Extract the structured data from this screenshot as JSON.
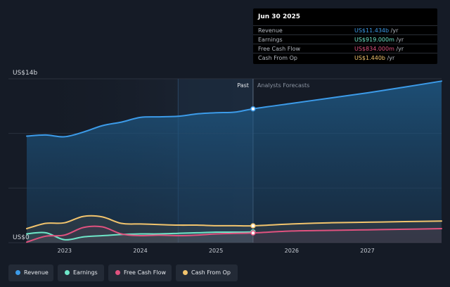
{
  "tooltip": {
    "date": "Jun 30 2025",
    "rows": [
      {
        "label": "Revenue",
        "value": "US$11.434b",
        "unit": "/yr",
        "color": "#3c9be9"
      },
      {
        "label": "Earnings",
        "value": "US$919.000m",
        "unit": "/yr",
        "color": "#6ee6c8"
      },
      {
        "label": "Free Cash Flow",
        "value": "US$834.000m",
        "unit": "/yr",
        "color": "#e0527f"
      },
      {
        "label": "Cash From Op",
        "value": "US$1.440b",
        "unit": "/yr",
        "color": "#f2c46d"
      }
    ]
  },
  "legend": [
    {
      "label": "Revenue",
      "color": "#3c9be9"
    },
    {
      "label": "Earnings",
      "color": "#6ee6c8"
    },
    {
      "label": "Free Cash Flow",
      "color": "#e0527f"
    },
    {
      "label": "Cash From Op",
      "color": "#f2c46d"
    }
  ],
  "chart_data": {
    "type": "area",
    "y_top_label": "US$14b",
    "y_bottom_label": "US$0",
    "ylim": [
      0,
      14
    ],
    "xlim": [
      2022.5,
      2027.98
    ],
    "x_ticks": [
      2023,
      2024,
      2025,
      2026,
      2027
    ],
    "x_tick_labels": [
      "2023",
      "2024",
      "2025",
      "2026",
      "2027"
    ],
    "past_label": "Past",
    "forecast_label": "Analysts Forecasts",
    "divider_x": 2025.49,
    "highlight_start_x": 2024.5,
    "series": [
      {
        "name": "Revenue",
        "color": "#3c9be9",
        "fill": true,
        "x": [
          2022.5,
          2022.75,
          2023.0,
          2023.25,
          2023.5,
          2023.75,
          2024.0,
          2024.25,
          2024.5,
          2024.75,
          2025.0,
          2025.25,
          2025.49,
          2026.0,
          2026.5,
          2027.0,
          2027.5,
          2027.98
        ],
        "y": [
          9.1,
          9.2,
          9.05,
          9.45,
          10.0,
          10.3,
          10.7,
          10.75,
          10.8,
          11.0,
          11.1,
          11.15,
          11.434,
          11.9,
          12.35,
          12.8,
          13.3,
          13.8
        ]
      },
      {
        "name": "Earnings",
        "color": "#6ee6c8",
        "fill": false,
        "x": [
          2022.5,
          2022.75,
          2023.0,
          2023.25,
          2023.5,
          2023.75,
          2024.0,
          2024.25,
          2024.5,
          2024.75,
          2025.0,
          2025.25,
          2025.49
        ],
        "y": [
          0.75,
          0.85,
          0.25,
          0.5,
          0.6,
          0.7,
          0.75,
          0.75,
          0.8,
          0.85,
          0.9,
          0.9,
          0.919
        ]
      },
      {
        "name": "Free Cash Flow",
        "color": "#e0527f",
        "fill": false,
        "x": [
          2022.5,
          2022.75,
          2023.0,
          2023.25,
          2023.5,
          2023.75,
          2024.0,
          2024.25,
          2024.5,
          2024.75,
          2025.0,
          2025.25,
          2025.49,
          2026.0,
          2026.5,
          2027.0,
          2027.5,
          2027.98
        ],
        "y": [
          0.05,
          0.55,
          0.65,
          1.3,
          1.35,
          0.75,
          0.6,
          0.65,
          0.6,
          0.65,
          0.75,
          0.8,
          0.834,
          1.0,
          1.05,
          1.1,
          1.15,
          1.2
        ]
      },
      {
        "name": "Cash From Op",
        "color": "#f2c46d",
        "fill": false,
        "x": [
          2022.5,
          2022.75,
          2023.0,
          2023.25,
          2023.5,
          2023.75,
          2024.0,
          2024.25,
          2024.5,
          2024.75,
          2025.0,
          2025.25,
          2025.49,
          2026.0,
          2026.5,
          2027.0,
          2027.5,
          2027.98
        ],
        "y": [
          1.2,
          1.65,
          1.7,
          2.25,
          2.2,
          1.65,
          1.6,
          1.55,
          1.5,
          1.5,
          1.45,
          1.45,
          1.44,
          1.6,
          1.7,
          1.75,
          1.8,
          1.85
        ]
      }
    ]
  }
}
